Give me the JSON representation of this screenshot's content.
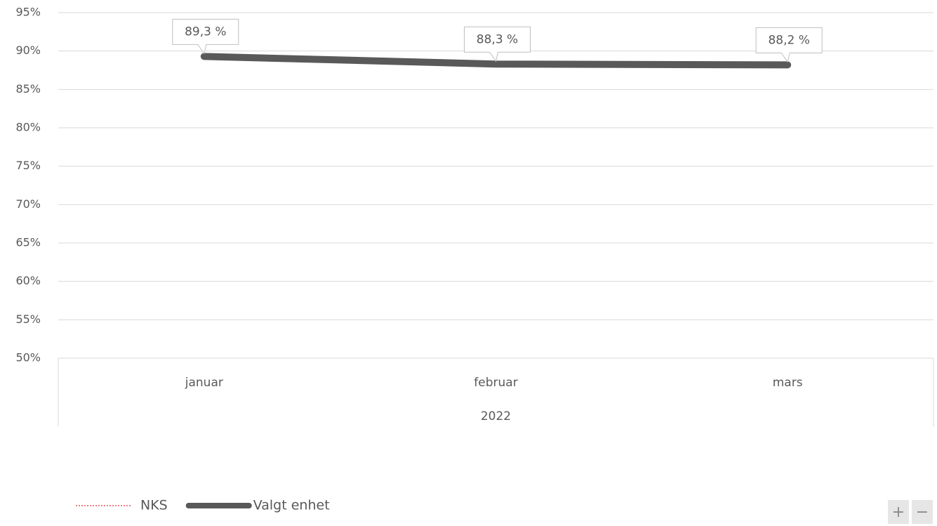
{
  "chart_data": {
    "type": "line",
    "categories": [
      "januar",
      "februar",
      "mars"
    ],
    "category_group": "2022",
    "series": [
      {
        "name": "NKS",
        "color": "#e8535a",
        "line_style": "dotted",
        "values": [
          null,
          null,
          null
        ]
      },
      {
        "name": "Valgt enhet",
        "color": "#595959",
        "line_style": "solid",
        "values": [
          89.3,
          88.3,
          88.2
        ],
        "value_labels": [
          "89,3 %",
          "88,3 %",
          "88,2 %"
        ]
      }
    ],
    "ylim": [
      50,
      95
    ],
    "yticks": [
      {
        "value": 50,
        "label": "50%"
      },
      {
        "value": 55,
        "label": "55%"
      },
      {
        "value": 60,
        "label": "60%"
      },
      {
        "value": 65,
        "label": "65%"
      },
      {
        "value": 70,
        "label": "70%"
      },
      {
        "value": 75,
        "label": "75%"
      },
      {
        "value": 80,
        "label": "80%"
      },
      {
        "value": 85,
        "label": "85%"
      },
      {
        "value": 90,
        "label": "90%"
      },
      {
        "value": 95,
        "label": "95%"
      }
    ],
    "grid": true,
    "legend": "bottom-left"
  },
  "controls": {
    "zoom_in": "+",
    "zoom_out": "−"
  }
}
